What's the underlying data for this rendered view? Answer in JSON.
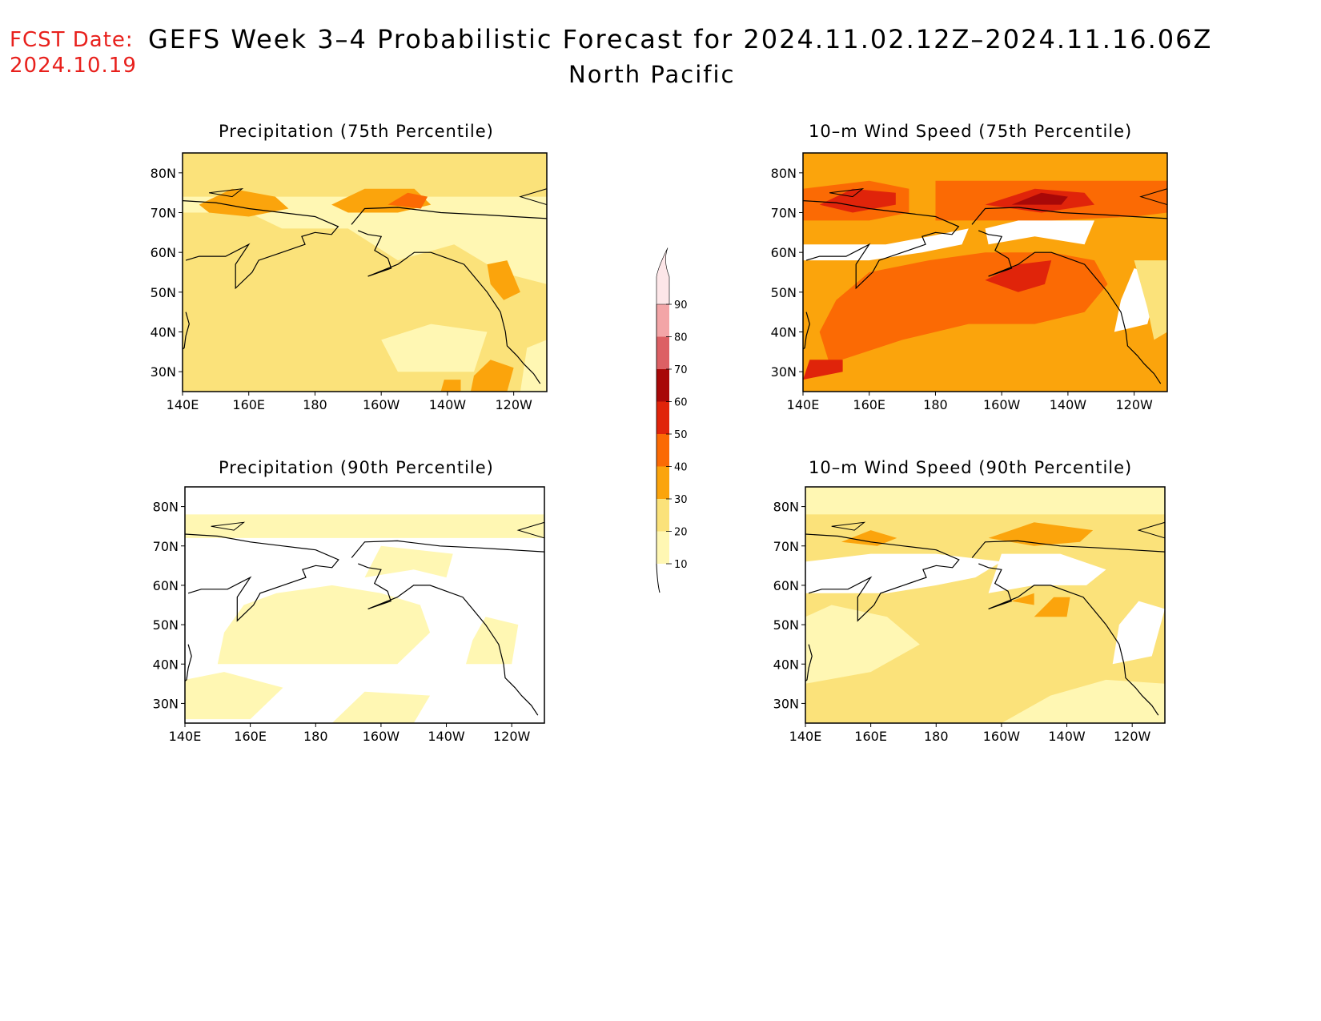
{
  "header": {
    "fcst_label": "FCST Date:",
    "fcst_date": "2024.10.19",
    "title": "GEFS Week 3–4 Probabilistic Forecast for 2024.11.02.12Z–2024.11.16.06Z",
    "subtitle": "North Pacific"
  },
  "axes": {
    "lon_labels": [
      "140E",
      "160E",
      "180",
      "160W",
      "140W",
      "120W"
    ],
    "lat_labels": [
      "80N",
      "70N",
      "60N",
      "50N",
      "40N",
      "30N"
    ]
  },
  "panels": [
    {
      "title": "Precipitation (75th Percentile)",
      "field": "precip75"
    },
    {
      "title": "10–m Wind Speed (75th Percentile)",
      "field": "wind75"
    },
    {
      "title": "Precipitation (90th Percentile)",
      "field": "precip90"
    },
    {
      "title": "10–m Wind Speed (90th Percentile)",
      "field": "wind90"
    }
  ],
  "colorbar": {
    "levels": [
      "10",
      "20",
      "30",
      "40",
      "50",
      "60",
      "70",
      "80",
      "90"
    ],
    "colors": [
      "#fff7b3",
      "#fbe27a",
      "#fba40c",
      "#fb6a04",
      "#e0240a",
      "#a80808",
      "#dc6064",
      "#f3a5a7",
      "#fde6e8"
    ]
  },
  "chart_data": {
    "type": "heatmap",
    "domain": {
      "lon_range": [
        "140E",
        "110W"
      ],
      "lat_range": [
        "25N",
        "85N"
      ]
    },
    "category_scale": [
      "<10",
      "10-20",
      "20-30",
      "30-40",
      "40-50",
      "50-60",
      "60-70"
    ],
    "fields": {
      "precip75": {
        "base_level": "10-20",
        "highlights": [
          {
            "region": "Arctic coast 70-75N",
            "level": "30-40"
          },
          {
            "region": "Alaska coast 55N",
            "level": "20-30"
          },
          {
            "region": "Subtropics near 120W 30N",
            "level": "30-40"
          }
        ]
      },
      "precip90": {
        "base_level": "<10",
        "highlights": [
          {
            "region": "Central N Pacific",
            "level": "10-20"
          },
          {
            "region": "Arctic coast",
            "level": "10-20"
          }
        ]
      },
      "wind75": {
        "base_level": "30-40",
        "highlights": [
          {
            "region": "Central N Pacific 35-55N",
            "level": "40-50"
          },
          {
            "region": "Arctic 70-75N",
            "level": "50-60"
          },
          {
            "region": "Gulf of Alaska",
            "level": "50-60"
          }
        ]
      },
      "wind90": {
        "base_level": "10-20",
        "highlights": [
          {
            "region": "Arctic 70-75N",
            "level": "30-40"
          },
          {
            "region": "Gulf of Alaska 55N",
            "level": "30-40"
          }
        ]
      }
    }
  }
}
